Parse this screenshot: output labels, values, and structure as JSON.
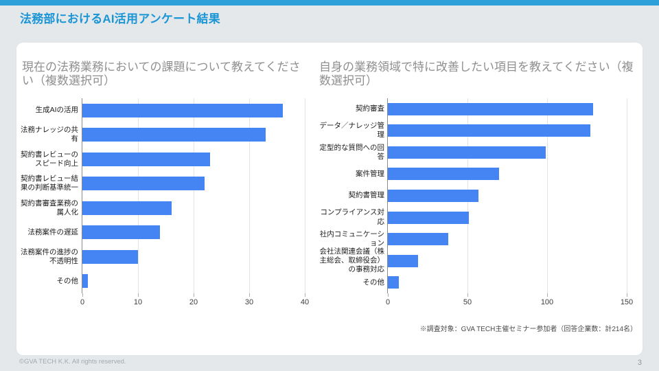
{
  "slide": {
    "title": "法務部におけるAI活用アンケート結果",
    "footnote": "※調査対象：GVA TECH主催セミナー参加者（回答企業数：計214名）",
    "footer": "©GVA TECH K.K. All rights reserved.",
    "page_number": "3",
    "accent_color": "#2d9fd9",
    "bar_color": "#4584f3"
  },
  "chart_data": [
    {
      "type": "bar",
      "orientation": "horizontal",
      "title": "現在の法務業務においての課題について教えてください（複数選択可）",
      "categories": [
        "生成AIの活用",
        "法務ナレッジの共有",
        "契約書レビューのスピード向上",
        "契約書レビュー結果の判断基準統一",
        "契約書審査業務の属人化",
        "法務案件の遅延",
        "法務案件の進捗の不透明性",
        "その他"
      ],
      "values": [
        36,
        33,
        23,
        22,
        16,
        14,
        10,
        1
      ],
      "ticks": [
        0,
        10,
        20,
        30,
        40
      ],
      "xlim": [
        0,
        40
      ],
      "xlabel": "",
      "ylabel": "",
      "grid": true,
      "legend": "none",
      "bar_color": "#4584f3"
    },
    {
      "type": "bar",
      "orientation": "horizontal",
      "title": "自身の業務領域で特に改善したい項目を教えてください（複数選択可）",
      "categories": [
        "契約審査",
        "データ／ナレッジ管理",
        "定型的な質問への回答",
        "案件管理",
        "契約書管理",
        "コンプライアンス対応",
        "社内コミュニケーション",
        "会社法関連会議（株主総会、取締役会）の事務対応",
        "その他"
      ],
      "values": [
        129,
        127,
        99,
        70,
        57,
        51,
        38,
        19,
        7
      ],
      "ticks": [
        0,
        50,
        100,
        150
      ],
      "xlim": [
        0,
        150
      ],
      "xlabel": "",
      "ylabel": "",
      "grid": true,
      "legend": "none",
      "bar_color": "#4584f3"
    }
  ]
}
